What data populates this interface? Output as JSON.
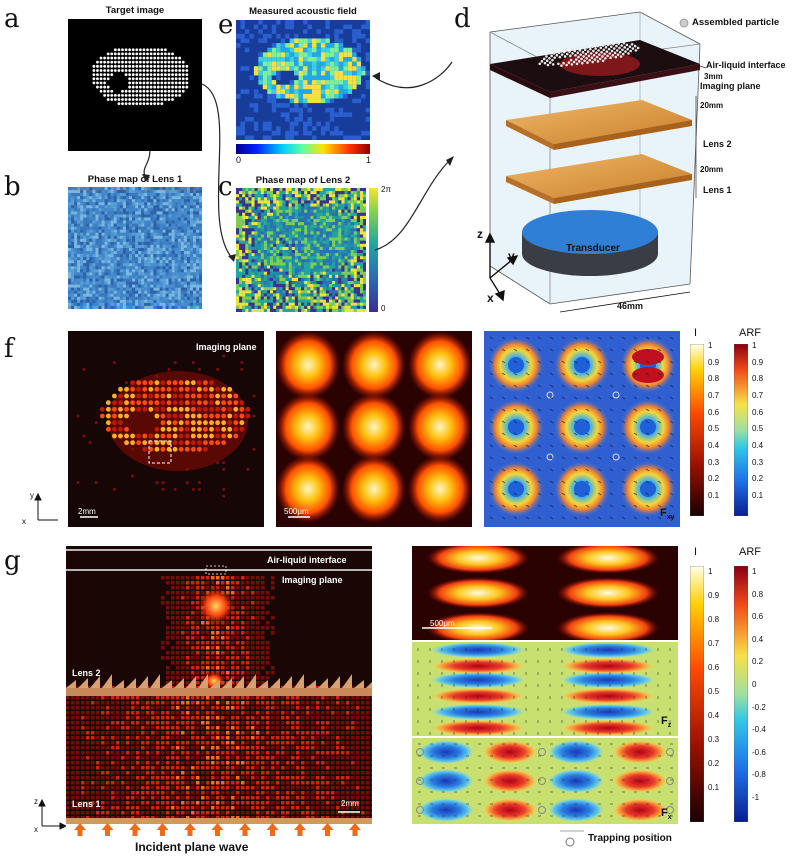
{
  "panel_letters": {
    "a": "a",
    "b": "b",
    "c": "c",
    "d": "d",
    "e": "e",
    "f": "f",
    "g": "g"
  },
  "panel_a": {
    "title": "Target image"
  },
  "panel_b": {
    "title": "Phase map of Lens 1"
  },
  "panel_c": {
    "title": "Phase map of Lens 2",
    "scale_max": "2π",
    "scale_min": "0"
  },
  "panel_e": {
    "title": "Measured acoustic field",
    "scale_min": "0",
    "scale_max": "1"
  },
  "panel_d": {
    "legend": "Assembled particle",
    "air_liquid": "Air-liquid interface",
    "imaging_plane": "Imaging plane",
    "d3": "3mm",
    "d20a": "20mm",
    "lens2": "Lens 2",
    "d20b": "20mm",
    "lens1": "Lens 1",
    "transducer": "Transducer",
    "width": "46mm",
    "axis_z": "z",
    "axis_y": "y",
    "axis_x": "x"
  },
  "panel_f": {
    "imaging_plane": "Imaging plane",
    "scalebar1": "2mm",
    "scalebar2": "500μm",
    "force_label": "F",
    "force_sub": "xy",
    "axis_y": "y",
    "axis_x": "x",
    "cbar_I": "I",
    "cbar_ARF": "ARF",
    "I_ticks": [
      "1",
      "0.9",
      "0.8",
      "0.7",
      "0.6",
      "0.5",
      "0.4",
      "0.3",
      "0.2",
      "0.1"
    ],
    "ARF_ticks": [
      "1",
      "0.9",
      "0.8",
      "0.7",
      "0.6",
      "0.5",
      "0.4",
      "0.3",
      "0.2",
      "0.1"
    ]
  },
  "panel_g": {
    "air_liquid": "Air-liquid interface",
    "imaging_plane": "Imaging plane",
    "lens2": "Lens 2",
    "lens1": "Lens 1",
    "scalebar1": "2mm",
    "scalebar2": "500μm",
    "incident": "Incident plane wave",
    "axis_z": "z",
    "axis_x": "x",
    "fz": "F",
    "fz_sub": "z",
    "fx": "F",
    "fx_sub": "x",
    "trapping": "Trapping position",
    "cbar_I": "I",
    "cbar_ARF": "ARF",
    "I_ticks": [
      "1",
      "0.9",
      "0.8",
      "0.7",
      "0.6",
      "0.5",
      "0.4",
      "0.3",
      "0.2",
      "0.1"
    ],
    "ARF_ticks": [
      "1",
      "0.8",
      "0.6",
      "0.4",
      "0.2",
      "0",
      "-0.2",
      "-0.4",
      "-0.6",
      "-0.8",
      "-1"
    ]
  },
  "colors": {
    "hot": "#ff3b00",
    "jet_mid": "#1fbf3f",
    "lens_orange": "#e29a3c"
  }
}
